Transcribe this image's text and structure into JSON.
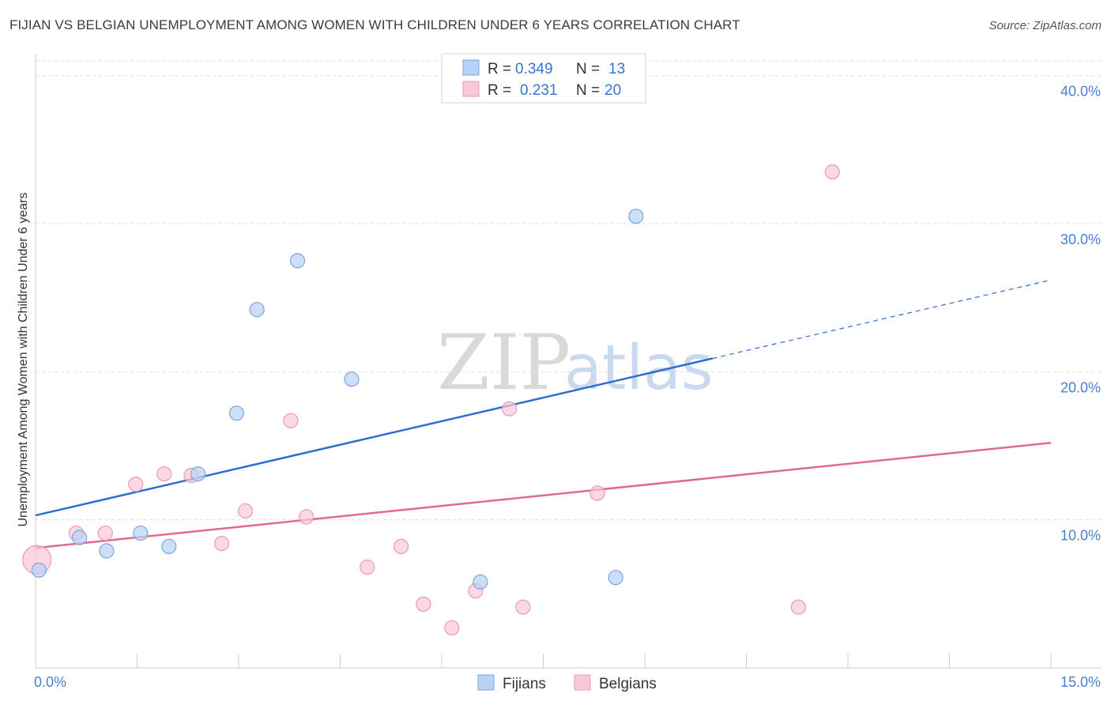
{
  "header": {
    "title": "FIJIAN VS BELGIAN UNEMPLOYMENT AMONG WOMEN WITH CHILDREN UNDER 6 YEARS CORRELATION CHART",
    "source": "Source: ZipAtlas.com"
  },
  "watermark": {
    "zip": "ZIP",
    "atlas": "atlas"
  },
  "legend": {
    "r_label": "R =",
    "n_label": "N =",
    "entries": [
      {
        "r": "0.349",
        "n": "13"
      },
      {
        "r": "0.231",
        "n": "20"
      }
    ]
  },
  "colors": {
    "fijians_fill": "#b8d2f5",
    "fijians_stroke": "#7aa6df",
    "fijians_line": "#2d6fcf",
    "belgians_fill": "#f9c8d8",
    "belgians_stroke": "#e89ab4",
    "belgians_line": "#e06a93",
    "grid": "#dddddd",
    "tick_text": "#4a7fd0"
  },
  "chart_data": {
    "type": "scatter",
    "title": "FIJIAN VS BELGIAN UNEMPLOYMENT AMONG WOMEN WITH CHILDREN UNDER 6 YEARS CORRELATION CHART",
    "xlabel": "",
    "ylabel": "Unemployment Among Women with Children Under 6 years",
    "xlim": [
      0,
      15
    ],
    "ylim": [
      0,
      41
    ],
    "x_tick_labels": [
      {
        "value": 0,
        "label": "0.0%"
      },
      {
        "value": 15,
        "label": "15.0%"
      }
    ],
    "y_ticks": [
      {
        "value": 10,
        "label": "10.0%"
      },
      {
        "value": 20,
        "label": "20.0%"
      },
      {
        "value": 30,
        "label": "30.0%"
      },
      {
        "value": 40,
        "label": "40.0%"
      }
    ],
    "grid": true,
    "legend_position": "top-center",
    "series": [
      {
        "name": "Fijians",
        "points": [
          {
            "x": 0.05,
            "y": 6.6,
            "size": 9
          },
          {
            "x": 0.65,
            "y": 8.8,
            "size": 9
          },
          {
            "x": 1.05,
            "y": 7.9,
            "size": 9
          },
          {
            "x": 1.55,
            "y": 9.1,
            "size": 9
          },
          {
            "x": 1.97,
            "y": 8.2,
            "size": 9
          },
          {
            "x": 2.4,
            "y": 13.1,
            "size": 9
          },
          {
            "x": 2.97,
            "y": 17.2,
            "size": 9
          },
          {
            "x": 3.27,
            "y": 24.2,
            "size": 9
          },
          {
            "x": 3.87,
            "y": 27.5,
            "size": 9
          },
          {
            "x": 4.67,
            "y": 19.5,
            "size": 9
          },
          {
            "x": 6.57,
            "y": 5.8,
            "size": 9
          },
          {
            "x": 8.57,
            "y": 6.1,
            "size": 9
          },
          {
            "x": 8.87,
            "y": 30.5,
            "size": 9
          }
        ],
        "trend": {
          "x": [
            0,
            10.0,
            15.0
          ],
          "y": [
            10.3,
            20.9,
            26.2
          ],
          "solid_until": 10.0
        }
      },
      {
        "name": "Belgians",
        "points": [
          {
            "x": 0.02,
            "y": 7.3,
            "size": 18
          },
          {
            "x": 0.6,
            "y": 9.1,
            "size": 9
          },
          {
            "x": 1.03,
            "y": 9.1,
            "size": 9
          },
          {
            "x": 1.48,
            "y": 12.4,
            "size": 9
          },
          {
            "x": 1.9,
            "y": 13.1,
            "size": 9
          },
          {
            "x": 2.3,
            "y": 13.0,
            "size": 9
          },
          {
            "x": 2.75,
            "y": 8.4,
            "size": 9
          },
          {
            "x": 3.1,
            "y": 10.6,
            "size": 9
          },
          {
            "x": 3.77,
            "y": 16.7,
            "size": 9
          },
          {
            "x": 4.0,
            "y": 10.2,
            "size": 9
          },
          {
            "x": 4.9,
            "y": 6.8,
            "size": 9
          },
          {
            "x": 5.4,
            "y": 8.2,
            "size": 9
          },
          {
            "x": 5.73,
            "y": 4.3,
            "size": 9
          },
          {
            "x": 6.15,
            "y": 2.7,
            "size": 9
          },
          {
            "x": 6.5,
            "y": 5.2,
            "size": 9
          },
          {
            "x": 7.0,
            "y": 17.5,
            "size": 9
          },
          {
            "x": 7.2,
            "y": 4.1,
            "size": 9
          },
          {
            "x": 8.3,
            "y": 11.8,
            "size": 9
          },
          {
            "x": 11.27,
            "y": 4.1,
            "size": 9
          },
          {
            "x": 11.77,
            "y": 33.5,
            "size": 9
          }
        ],
        "trend": {
          "x": [
            0,
            15.0
          ],
          "y": [
            8.1,
            15.2
          ],
          "solid_until": 15.0
        }
      }
    ]
  }
}
